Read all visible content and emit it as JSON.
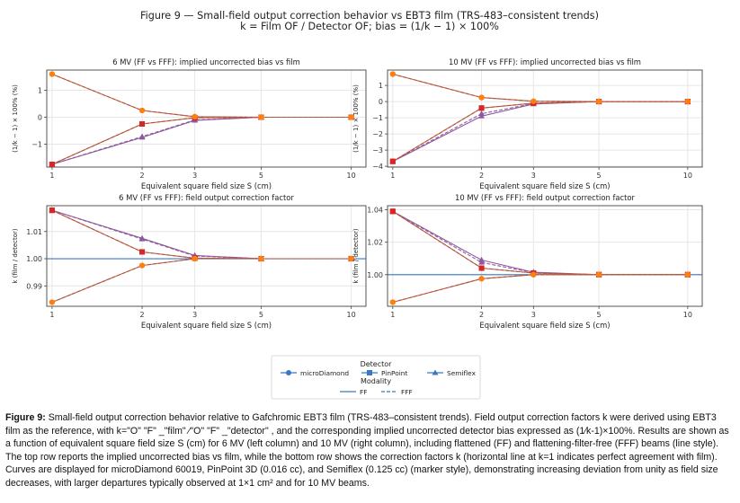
{
  "figure": {
    "title_line1": "Figure 9 — Small-field output correction behavior vs EBT3 film (TRS-483–consistent trends)",
    "title_line2": "k = Film OF / Detector OF; bias = (1/k − 1) × 100%"
  },
  "legend": {
    "detector_title": "Detector",
    "detectors": [
      "microDiamond",
      "PinPoint",
      "Semiflex"
    ],
    "modality_title": "Modality",
    "modalities": [
      "FF",
      "FFF"
    ]
  },
  "colors": {
    "microDiamond": "#ff7f0e",
    "PinPoint": "#d62728",
    "Semiflex": "#8c5a9e",
    "connector_FF": "#c06a2a",
    "connector_FFF": "#b05050",
    "legend_line": "#3a78c4",
    "reference_line": "#3a78c4"
  },
  "caption": {
    "label": "Figure 9:",
    "text": "Small-field output correction behavior relative to Gafchromic EBT3 film (TRS-483–consistent trends). Field output correction factors k were derived using EBT3 film as the reference, with k=\"O\" \"F\" _\"film\" ∕\"O\" \"F\" _\"detector\" , and the corresponding implied uncorrected detector bias expressed as (1∕k-1)×100%. Results are shown as a function of equivalent square field size S (cm) for 6 MV (left column) and 10 MV (right column), including flattened (FF) and flattening-filter-free (FFF) beams (line style). The top row reports the implied uncorrected bias vs film, while the bottom row shows the correction factors k (horizontal line at k=1 indicates perfect agreement with film). Curves are displayed for microDiamond 60019, PinPoint 3D (0.016 cc), and Semiflex (0.125 cc) (marker style), demonstrating increasing deviation from unity as field size decreases, with larger departures typically observed at 1×1 cm² and for 10 MV beams."
  },
  "chart_data": [
    {
      "type": "line",
      "title": "6 MV (FF vs FFF): implied uncorrected bias vs film",
      "xlabel": "Equivalent square field size S (cm)",
      "ylabel": "(1/k − 1) × 100% (%)",
      "x": [
        1,
        2,
        3,
        5,
        10
      ],
      "x_scale": "log",
      "xticks": [
        1,
        2,
        3,
        5,
        10
      ],
      "yticks": [
        -1,
        0,
        1
      ],
      "ylim": [
        -1.85,
        1.75
      ],
      "grid": true,
      "series": [
        {
          "name": "microDiamond",
          "modality": "FF",
          "values": [
            1.6,
            0.25,
            0.02,
            0.0,
            0.0
          ]
        },
        {
          "name": "microDiamond",
          "modality": "FFF",
          "values": [
            1.6,
            0.25,
            0.02,
            0.0,
            0.0
          ]
        },
        {
          "name": "PinPoint",
          "modality": "FF",
          "values": [
            -1.75,
            -0.25,
            -0.02,
            0.0,
            0.0
          ]
        },
        {
          "name": "PinPoint",
          "modality": "FFF",
          "values": [
            -1.75,
            -0.25,
            -0.02,
            0.0,
            0.0
          ]
        },
        {
          "name": "Semiflex",
          "modality": "FF",
          "values": [
            -1.75,
            -0.75,
            -0.12,
            0.0,
            0.0
          ]
        },
        {
          "name": "Semiflex",
          "modality": "FFF",
          "values": [
            -1.75,
            -0.72,
            -0.1,
            0.0,
            0.0
          ]
        }
      ]
    },
    {
      "type": "line",
      "title": "10 MV (FF vs FFF): implied uncorrected bias vs film",
      "xlabel": "Equivalent square field size S (cm)",
      "ylabel": "(1/k − 1) × 100% (%)",
      "x": [
        1,
        2,
        3,
        5,
        10
      ],
      "x_scale": "log",
      "xticks": [
        1,
        2,
        3,
        5,
        10
      ],
      "yticks": [
        -4,
        -3,
        -2,
        -1,
        0,
        1
      ],
      "ylim": [
        -4.05,
        1.95
      ],
      "grid": true,
      "series": [
        {
          "name": "microDiamond",
          "modality": "FF",
          "values": [
            1.7,
            0.25,
            0.02,
            0.0,
            0.0
          ]
        },
        {
          "name": "microDiamond",
          "modality": "FFF",
          "values": [
            1.7,
            0.25,
            0.02,
            0.0,
            0.0
          ]
        },
        {
          "name": "PinPoint",
          "modality": "FF",
          "values": [
            -3.7,
            -0.4,
            -0.1,
            0.0,
            0.0
          ]
        },
        {
          "name": "PinPoint",
          "modality": "FFF",
          "values": [
            -3.7,
            -0.4,
            -0.1,
            0.0,
            0.0
          ]
        },
        {
          "name": "Semiflex",
          "modality": "FF",
          "values": [
            -3.7,
            -0.9,
            -0.15,
            0.0,
            0.0
          ]
        },
        {
          "name": "Semiflex",
          "modality": "FFF",
          "values": [
            -3.7,
            -0.75,
            -0.12,
            0.0,
            0.0
          ]
        }
      ]
    },
    {
      "type": "line",
      "title": "6 MV (FF vs FFF): field output correction factor",
      "xlabel": "Equivalent square field size S (cm)",
      "ylabel": "k (film / detector)",
      "x": [
        1,
        2,
        3,
        5,
        10
      ],
      "x_scale": "log",
      "xticks": [
        1,
        2,
        3,
        5,
        10
      ],
      "yticks": [
        0.99,
        1.0,
        1.01
      ],
      "ylim": [
        0.9825,
        1.0195
      ],
      "reference_line": 1.0,
      "grid": true,
      "series": [
        {
          "name": "microDiamond",
          "modality": "FF",
          "values": [
            0.984,
            0.9975,
            1.0,
            1.0,
            1.0
          ]
        },
        {
          "name": "microDiamond",
          "modality": "FFF",
          "values": [
            0.984,
            0.9975,
            1.0,
            1.0,
            1.0
          ]
        },
        {
          "name": "PinPoint",
          "modality": "FF",
          "values": [
            1.0178,
            1.0025,
            1.0002,
            1.0,
            1.0
          ]
        },
        {
          "name": "PinPoint",
          "modality": "FFF",
          "values": [
            1.0178,
            1.0025,
            1.0002,
            1.0,
            1.0
          ]
        },
        {
          "name": "Semiflex",
          "modality": "FF",
          "values": [
            1.0178,
            1.0075,
            1.0012,
            1.0,
            1.0
          ]
        },
        {
          "name": "Semiflex",
          "modality": "FFF",
          "values": [
            1.0178,
            1.0072,
            1.001,
            1.0,
            1.0
          ]
        }
      ]
    },
    {
      "type": "line",
      "title": "10 MV (FF vs FFF): field output correction factor",
      "xlabel": "Equivalent square field size S (cm)",
      "ylabel": "k (film / detector)",
      "x": [
        1,
        2,
        3,
        5,
        10
      ],
      "x_scale": "log",
      "xticks": [
        1,
        2,
        3,
        5,
        10
      ],
      "yticks": [
        1.0,
        1.02,
        1.04
      ],
      "ylim": [
        0.9805,
        1.0425
      ],
      "reference_line": 1.0,
      "grid": true,
      "series": [
        {
          "name": "microDiamond",
          "modality": "FF",
          "values": [
            0.983,
            0.9975,
            1.0,
            1.0,
            1.0
          ]
        },
        {
          "name": "microDiamond",
          "modality": "FFF",
          "values": [
            0.983,
            0.9975,
            1.0,
            1.0,
            1.0
          ]
        },
        {
          "name": "PinPoint",
          "modality": "FF",
          "values": [
            1.039,
            1.004,
            1.001,
            1.0,
            1.0
          ]
        },
        {
          "name": "PinPoint",
          "modality": "FFF",
          "values": [
            1.039,
            1.004,
            1.001,
            1.0,
            1.0
          ]
        },
        {
          "name": "Semiflex",
          "modality": "FF",
          "values": [
            1.039,
            1.009,
            1.0015,
            1.0,
            1.0
          ]
        },
        {
          "name": "Semiflex",
          "modality": "FFF",
          "values": [
            1.039,
            1.0075,
            1.0012,
            1.0,
            1.0
          ]
        }
      ]
    }
  ]
}
